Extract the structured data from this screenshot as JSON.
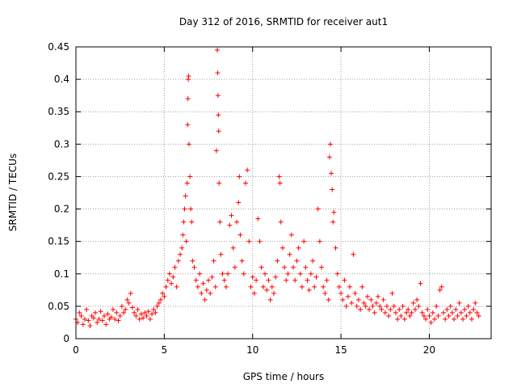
{
  "chart_data": {
    "type": "scatter",
    "title": "Day 312 of 2016, SRMTID for receiver aut1",
    "xlabel": "GPS time / hours",
    "ylabel": "SRMTID / TECUs",
    "xlim": [
      0,
      23.5
    ],
    "ylim": [
      0,
      0.45
    ],
    "xticks": [
      0,
      5,
      10,
      15,
      20
    ],
    "xtick_labels": [
      "0",
      "5",
      "10",
      "15",
      "20"
    ],
    "yticks": [
      0,
      0.05,
      0.1,
      0.15,
      0.2,
      0.25,
      0.3,
      0.35,
      0.4,
      0.45
    ],
    "ytick_labels": [
      "0",
      "0.05",
      "0.1",
      "0.15",
      "0.2",
      "0.25",
      "0.3",
      "0.35",
      "0.4",
      "0.45"
    ],
    "grid": true,
    "marker": "+",
    "color": "#ff0000",
    "series": [
      {
        "name": "SRMTID",
        "points": [
          [
            0.0,
            0.03
          ],
          [
            0.1,
            0.025
          ],
          [
            0.2,
            0.04
          ],
          [
            0.3,
            0.035
          ],
          [
            0.4,
            0.022
          ],
          [
            0.5,
            0.03
          ],
          [
            0.6,
            0.045
          ],
          [
            0.7,
            0.028
          ],
          [
            0.8,
            0.02
          ],
          [
            0.9,
            0.035
          ],
          [
            1.0,
            0.032
          ],
          [
            1.1,
            0.04
          ],
          [
            1.2,
            0.025
          ],
          [
            1.3,
            0.03
          ],
          [
            1.4,
            0.042
          ],
          [
            1.5,
            0.028
          ],
          [
            1.6,
            0.035
          ],
          [
            1.7,
            0.022
          ],
          [
            1.8,
            0.038
          ],
          [
            1.9,
            0.03
          ],
          [
            2.0,
            0.033
          ],
          [
            2.1,
            0.045
          ],
          [
            2.2,
            0.03
          ],
          [
            2.3,
            0.04
          ],
          [
            2.4,
            0.028
          ],
          [
            2.5,
            0.035
          ],
          [
            2.6,
            0.05
          ],
          [
            2.7,
            0.04
          ],
          [
            2.8,
            0.045
          ],
          [
            2.9,
            0.06
          ],
          [
            3.0,
            0.055
          ],
          [
            3.1,
            0.07
          ],
          [
            3.2,
            0.048
          ],
          [
            3.3,
            0.04
          ],
          [
            3.4,
            0.035
          ],
          [
            3.5,
            0.045
          ],
          [
            3.6,
            0.03
          ],
          [
            3.7,
            0.038
          ],
          [
            3.8,
            0.032
          ],
          [
            3.9,
            0.04
          ],
          [
            4.0,
            0.035
          ],
          [
            4.1,
            0.042
          ],
          [
            4.2,
            0.03
          ],
          [
            4.3,
            0.038
          ],
          [
            4.4,
            0.045
          ],
          [
            4.5,
            0.04
          ],
          [
            4.6,
            0.05
          ],
          [
            4.7,
            0.055
          ],
          [
            4.8,
            0.06
          ],
          [
            4.9,
            0.07
          ],
          [
            5.0,
            0.065
          ],
          [
            5.1,
            0.08
          ],
          [
            5.2,
            0.09
          ],
          [
            5.3,
            0.1
          ],
          [
            5.4,
            0.085
          ],
          [
            5.5,
            0.095
          ],
          [
            5.6,
            0.11
          ],
          [
            5.7,
            0.08
          ],
          [
            5.8,
            0.12
          ],
          [
            5.9,
            0.13
          ],
          [
            6.0,
            0.14
          ],
          [
            6.05,
            0.16
          ],
          [
            6.1,
            0.18
          ],
          [
            6.15,
            0.2
          ],
          [
            6.2,
            0.22
          ],
          [
            6.25,
            0.15
          ],
          [
            6.3,
            0.24
          ],
          [
            6.32,
            0.33
          ],
          [
            6.34,
            0.37
          ],
          [
            6.36,
            0.4
          ],
          [
            6.38,
            0.405
          ],
          [
            6.4,
            0.3
          ],
          [
            6.45,
            0.25
          ],
          [
            6.5,
            0.2
          ],
          [
            6.55,
            0.18
          ],
          [
            6.6,
            0.12
          ],
          [
            6.7,
            0.11
          ],
          [
            6.8,
            0.09
          ],
          [
            6.9,
            0.08
          ],
          [
            7.0,
            0.1
          ],
          [
            7.1,
            0.07
          ],
          [
            7.2,
            0.085
          ],
          [
            7.3,
            0.06
          ],
          [
            7.4,
            0.075
          ],
          [
            7.5,
            0.09
          ],
          [
            7.6,
            0.07
          ],
          [
            7.7,
            0.095
          ],
          [
            7.8,
            0.12
          ],
          [
            7.9,
            0.08
          ],
          [
            7.95,
            0.29
          ],
          [
            8.0,
            0.445
          ],
          [
            8.02,
            0.41
          ],
          [
            8.04,
            0.375
          ],
          [
            8.06,
            0.345
          ],
          [
            8.08,
            0.32
          ],
          [
            8.1,
            0.24
          ],
          [
            8.15,
            0.18
          ],
          [
            8.2,
            0.13
          ],
          [
            8.3,
            0.1
          ],
          [
            8.4,
            0.09
          ],
          [
            8.5,
            0.08
          ],
          [
            8.6,
            0.1
          ],
          [
            8.7,
            0.175
          ],
          [
            8.8,
            0.19
          ],
          [
            8.9,
            0.14
          ],
          [
            9.0,
            0.11
          ],
          [
            9.1,
            0.18
          ],
          [
            9.2,
            0.21
          ],
          [
            9.25,
            0.25
          ],
          [
            9.3,
            0.16
          ],
          [
            9.4,
            0.12
          ],
          [
            9.5,
            0.1
          ],
          [
            9.6,
            0.24
          ],
          [
            9.7,
            0.26
          ],
          [
            9.8,
            0.15
          ],
          [
            9.9,
            0.08
          ],
          [
            10.0,
            0.095
          ],
          [
            10.1,
            0.07
          ],
          [
            10.2,
            0.09
          ],
          [
            10.3,
            0.185
          ],
          [
            10.4,
            0.15
          ],
          [
            10.5,
            0.11
          ],
          [
            10.6,
            0.08
          ],
          [
            10.7,
            0.1
          ],
          [
            10.8,
            0.075
          ],
          [
            10.9,
            0.09
          ],
          [
            11.0,
            0.06
          ],
          [
            11.1,
            0.08
          ],
          [
            11.2,
            0.07
          ],
          [
            11.3,
            0.095
          ],
          [
            11.4,
            0.12
          ],
          [
            11.5,
            0.25
          ],
          [
            11.55,
            0.24
          ],
          [
            11.6,
            0.18
          ],
          [
            11.7,
            0.14
          ],
          [
            11.8,
            0.11
          ],
          [
            11.9,
            0.09
          ],
          [
            12.0,
            0.1
          ],
          [
            12.1,
            0.13
          ],
          [
            12.2,
            0.16
          ],
          [
            12.3,
            0.11
          ],
          [
            12.4,
            0.09
          ],
          [
            12.5,
            0.12
          ],
          [
            12.6,
            0.14
          ],
          [
            12.7,
            0.1
          ],
          [
            12.8,
            0.08
          ],
          [
            12.9,
            0.15
          ],
          [
            13.0,
            0.11
          ],
          [
            13.1,
            0.09
          ],
          [
            13.2,
            0.075
          ],
          [
            13.3,
            0.1
          ],
          [
            13.4,
            0.12
          ],
          [
            13.5,
            0.08
          ],
          [
            13.6,
            0.095
          ],
          [
            13.7,
            0.2
          ],
          [
            13.8,
            0.15
          ],
          [
            13.9,
            0.11
          ],
          [
            14.0,
            0.08
          ],
          [
            14.1,
            0.07
          ],
          [
            14.2,
            0.09
          ],
          [
            14.3,
            0.06
          ],
          [
            14.35,
            0.28
          ],
          [
            14.4,
            0.3
          ],
          [
            14.45,
            0.255
          ],
          [
            14.5,
            0.23
          ],
          [
            14.55,
            0.18
          ],
          [
            14.6,
            0.195
          ],
          [
            14.7,
            0.14
          ],
          [
            14.8,
            0.1
          ],
          [
            14.9,
            0.08
          ],
          [
            15.0,
            0.07
          ],
          [
            15.1,
            0.06
          ],
          [
            15.2,
            0.09
          ],
          [
            15.3,
            0.05
          ],
          [
            15.4,
            0.065
          ],
          [
            15.5,
            0.08
          ],
          [
            15.6,
            0.055
          ],
          [
            15.7,
            0.13
          ],
          [
            15.8,
            0.07
          ],
          [
            15.9,
            0.05
          ],
          [
            16.0,
            0.06
          ],
          [
            16.1,
            0.045
          ],
          [
            16.2,
            0.08
          ],
          [
            16.3,
            0.055
          ],
          [
            16.4,
            0.05
          ],
          [
            16.5,
            0.065
          ],
          [
            16.6,
            0.045
          ],
          [
            16.7,
            0.06
          ],
          [
            16.8,
            0.05
          ],
          [
            16.9,
            0.04
          ],
          [
            17.0,
            0.055
          ],
          [
            17.1,
            0.065
          ],
          [
            17.2,
            0.05
          ],
          [
            17.3,
            0.045
          ],
          [
            17.4,
            0.06
          ],
          [
            17.5,
            0.04
          ],
          [
            17.6,
            0.05
          ],
          [
            17.7,
            0.035
          ],
          [
            17.8,
            0.045
          ],
          [
            17.9,
            0.07
          ],
          [
            18.0,
            0.05
          ],
          [
            18.1,
            0.04
          ],
          [
            18.2,
            0.03
          ],
          [
            18.3,
            0.045
          ],
          [
            18.4,
            0.035
          ],
          [
            18.5,
            0.05
          ],
          [
            18.6,
            0.03
          ],
          [
            18.7,
            0.04
          ],
          [
            18.8,
            0.045
          ],
          [
            18.9,
            0.035
          ],
          [
            19.0,
            0.04
          ],
          [
            19.1,
            0.055
          ],
          [
            19.2,
            0.045
          ],
          [
            19.3,
            0.06
          ],
          [
            19.4,
            0.05
          ],
          [
            19.5,
            0.085
          ],
          [
            19.6,
            0.04
          ],
          [
            19.7,
            0.035
          ],
          [
            19.8,
            0.03
          ],
          [
            19.9,
            0.045
          ],
          [
            20.0,
            0.035
          ],
          [
            20.1,
            0.025
          ],
          [
            20.2,
            0.04
          ],
          [
            20.3,
            0.03
          ],
          [
            20.4,
            0.05
          ],
          [
            20.5,
            0.035
          ],
          [
            20.6,
            0.075
          ],
          [
            20.7,
            0.08
          ],
          [
            20.8,
            0.04
          ],
          [
            20.9,
            0.03
          ],
          [
            21.0,
            0.045
          ],
          [
            21.1,
            0.035
          ],
          [
            21.2,
            0.05
          ],
          [
            21.3,
            0.04
          ],
          [
            21.4,
            0.03
          ],
          [
            21.5,
            0.045
          ],
          [
            21.6,
            0.035
          ],
          [
            21.7,
            0.055
          ],
          [
            21.8,
            0.04
          ],
          [
            21.9,
            0.03
          ],
          [
            22.0,
            0.045
          ],
          [
            22.1,
            0.035
          ],
          [
            22.2,
            0.05
          ],
          [
            22.3,
            0.04
          ],
          [
            22.4,
            0.03
          ],
          [
            22.5,
            0.045
          ],
          [
            22.6,
            0.055
          ],
          [
            22.7,
            0.04
          ],
          [
            22.8,
            0.035
          ]
        ]
      }
    ]
  }
}
